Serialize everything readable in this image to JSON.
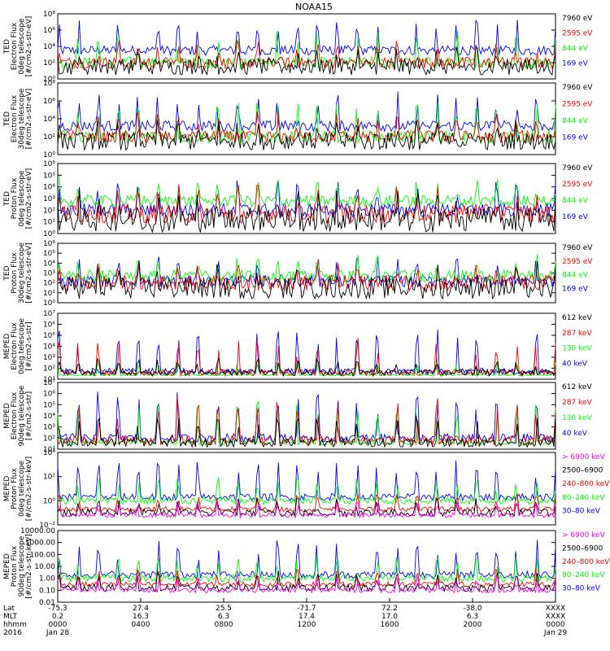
{
  "title": "NOAA15",
  "colors": {
    "black": "#000000",
    "red": "#ff0000",
    "green": "#00ff00",
    "blue": "#0000ff",
    "magenta": "#ff00ff"
  },
  "x_axis": {
    "row_labels": [
      "Lat",
      "MLT",
      "hhmm",
      "2016"
    ],
    "columns": [
      {
        "lat": "-75.3",
        "mlt": "0.2",
        "hhmm": "0000",
        "date": "Jan 28"
      },
      {
        "lat": "27.4",
        "mlt": "16.3",
        "hhmm": "0400",
        "date": ""
      },
      {
        "lat": "25.5",
        "mlt": "6.3",
        "hhmm": "0800",
        "date": ""
      },
      {
        "lat": "-71.7",
        "mlt": "17.4",
        "hhmm": "1200",
        "date": ""
      },
      {
        "lat": "72.2",
        "mlt": "17.0",
        "hhmm": "1600",
        "date": ""
      },
      {
        "lat": "-38.0",
        "mlt": "6.3",
        "hhmm": "2000",
        "date": ""
      },
      {
        "lat": "XXXX",
        "mlt": "XXXX",
        "hhmm": "0000",
        "date": "Jan 29"
      }
    ]
  },
  "chart_data": [
    {
      "type": "line",
      "ylabel": [
        "TED",
        "Electron Flux",
        "0deg telescope",
        "[#/cm2-s-str-eV]"
      ],
      "yscale": "log",
      "yticks": [
        "10⁰",
        "10²",
        "10⁴",
        "10⁶",
        "10⁸"
      ],
      "series": [
        {
          "name": "7960 eV",
          "color": "#000000",
          "base": 1.5,
          "jit": 1.0,
          "pk": 1.5
        },
        {
          "name": "2595 eV",
          "color": "#ff0000",
          "base": 2.0,
          "jit": 0.7,
          "pk": 2.0
        },
        {
          "name": "844 eV",
          "color": "#00ff00",
          "base": 2.0,
          "jit": 0.7,
          "pk": 3.0
        },
        {
          "name": "169 eV",
          "color": "#0000ff",
          "base": 3.5,
          "jit": 0.6,
          "pk": 3.0
        }
      ]
    },
    {
      "type": "line",
      "ylabel": [
        "TED",
        "Electron Flux",
        "30deg telescope",
        "[#/cm2-s-str-eV]"
      ],
      "yscale": "log",
      "yticks": [
        "10⁰",
        "10²",
        "10⁴",
        "10⁶",
        "10⁸"
      ],
      "series": [
        {
          "name": "7960 eV",
          "color": "#000000",
          "base": 1.5,
          "jit": 1.0,
          "pk": 1.5
        },
        {
          "name": "2595 eV",
          "color": "#ff0000",
          "base": 2.0,
          "jit": 0.7,
          "pk": 2.0
        },
        {
          "name": "844 eV",
          "color": "#00ff00",
          "base": 2.0,
          "jit": 0.7,
          "pk": 3.0
        },
        {
          "name": "169 eV",
          "color": "#0000ff",
          "base": 3.2,
          "jit": 0.6,
          "pk": 3.0
        }
      ]
    },
    {
      "type": "line",
      "ylabel": [
        "TED",
        "Proton Flux",
        "0deg telescope",
        "[#/cm2-s-str-eV]"
      ],
      "yscale": "log",
      "yticks": [
        "10⁰",
        "10¹",
        "10²",
        "10³",
        "10⁴",
        "10⁵",
        "10⁶"
      ],
      "series": [
        {
          "name": "7960 eV",
          "color": "#000000",
          "base": 1.2,
          "jit": 1.1,
          "pk": 1.5
        },
        {
          "name": "2595 eV",
          "color": "#ff0000",
          "base": 1.7,
          "jit": 0.8,
          "pk": 1.5
        },
        {
          "name": "844 eV",
          "color": "#00ff00",
          "base": 2.8,
          "jit": 0.5,
          "pk": 1.5
        },
        {
          "name": "169 eV",
          "color": "#0000ff",
          "base": 2.0,
          "jit": 0.6,
          "pk": 2.0
        }
      ]
    },
    {
      "type": "line",
      "ylabel": [
        "TED",
        "Proton Flux",
        "30deg telescope",
        "[#/cm2-s-str-eV]"
      ],
      "yscale": "log",
      "yticks": [
        "10⁰",
        "10¹",
        "10²",
        "10³",
        "10⁴",
        "10⁵",
        "10⁶"
      ],
      "series": [
        {
          "name": "7960 eV",
          "color": "#000000",
          "base": 1.5,
          "jit": 1.1,
          "pk": 1.5
        },
        {
          "name": "2595 eV",
          "color": "#ff0000",
          "base": 2.0,
          "jit": 0.8,
          "pk": 1.5
        },
        {
          "name": "844 eV",
          "color": "#00ff00",
          "base": 2.7,
          "jit": 0.6,
          "pk": 1.5
        },
        {
          "name": "169 eV",
          "color": "#0000ff",
          "base": 2.2,
          "jit": 0.6,
          "pk": 2.0
        }
      ]
    },
    {
      "type": "line",
      "ylabel": [
        "MEPED",
        "Electron Flux",
        "0deg telescope",
        "[#/cm2-s-str]"
      ],
      "yscale": "log",
      "yticks": [
        "10¹",
        "10²",
        "10³",
        "10⁴",
        "10⁵",
        "10⁶",
        "10⁷"
      ],
      "series": [
        {
          "name": "612 keV",
          "color": "#000000",
          "base": 1.6,
          "jit": 0.3,
          "pk": 1.0
        },
        {
          "name": "287 keV",
          "color": "#ff0000",
          "base": 1.6,
          "jit": 0.3,
          "pk": 2.5
        },
        {
          "name": "130 keV",
          "color": "#00ff00",
          "base": 1.4,
          "jit": 0.1,
          "pk": 1.0
        },
        {
          "name": "40 keV",
          "color": "#0000ff",
          "base": 1.7,
          "jit": 0.3,
          "pk": 3.0
        }
      ]
    },
    {
      "type": "line",
      "ylabel": [
        "MEPED",
        "Electron Flux",
        "90deg telescope",
        "[#/cm2-s-str]"
      ],
      "yscale": "log",
      "yticks": [
        "10¹",
        "10²",
        "10³",
        "10⁴",
        "10⁵",
        "10⁶",
        "10⁷"
      ],
      "series": [
        {
          "name": "612 keV",
          "color": "#000000",
          "base": 1.6,
          "jit": 0.4,
          "pk": 2.0
        },
        {
          "name": "287 keV",
          "color": "#ff0000",
          "base": 1.8,
          "jit": 0.4,
          "pk": 3.0
        },
        {
          "name": "130 keV",
          "color": "#00ff00",
          "base": 1.6,
          "jit": 0.2,
          "pk": 3.0
        },
        {
          "name": "40 keV",
          "color": "#0000ff",
          "base": 2.0,
          "jit": 0.4,
          "pk": 3.2
        }
      ]
    },
    {
      "type": "line",
      "ylabel": [
        "MEPED",
        "Proton Flux",
        "0deg telescope",
        "[#/cm2-s-str-keV]"
      ],
      "yscale": "log",
      "yticks": [
        "10⁻²",
        "10⁰",
        "10²",
        "10⁴"
      ],
      "series": [
        {
          "name": "> 6900 keV",
          "color": "#ff00ff",
          "base": -1.2,
          "jit": 0.2,
          "pk": 1.0
        },
        {
          "name": "2500–6900",
          "color": "#000000",
          "base": -1.0,
          "jit": 0.3,
          "pk": 1.0
        },
        {
          "name": "240–800 keV",
          "color": "#ff0000",
          "base": -0.7,
          "jit": 0.2,
          "pk": 1.0
        },
        {
          "name": "80–240 keV",
          "color": "#00ff00",
          "base": 0.0,
          "jit": 0.3,
          "pk": 1.5
        },
        {
          "name": "30–80 keV",
          "color": "#0000ff",
          "base": 0.3,
          "jit": 0.3,
          "pk": 2.5
        }
      ]
    },
    {
      "type": "line",
      "ylabel": [
        "MEPED",
        "Proton Flux",
        "90deg telescope",
        "[#/cm2-s-str-keV]"
      ],
      "yscale": "log",
      "yticks": [
        "0.01",
        "0.10",
        "1.00",
        "10.00",
        "100.00",
        "1000.00",
        "10000.00"
      ],
      "series": [
        {
          "name": "> 6900 keV",
          "color": "#ff00ff",
          "base": -1.0,
          "jit": 0.2,
          "pk": 1.0
        },
        {
          "name": "2500–6900",
          "color": "#000000",
          "base": -0.8,
          "jit": 0.3,
          "pk": 1.0
        },
        {
          "name": "240–800 keV",
          "color": "#ff0000",
          "base": -0.5,
          "jit": 0.2,
          "pk": 1.0
        },
        {
          "name": "80–240 keV",
          "color": "#00ff00",
          "base": 0.0,
          "jit": 0.3,
          "pk": 1.5
        },
        {
          "name": "30–80 keV",
          "color": "#0000ff",
          "base": 0.3,
          "jit": 0.3,
          "pk": 2.5
        }
      ]
    }
  ]
}
